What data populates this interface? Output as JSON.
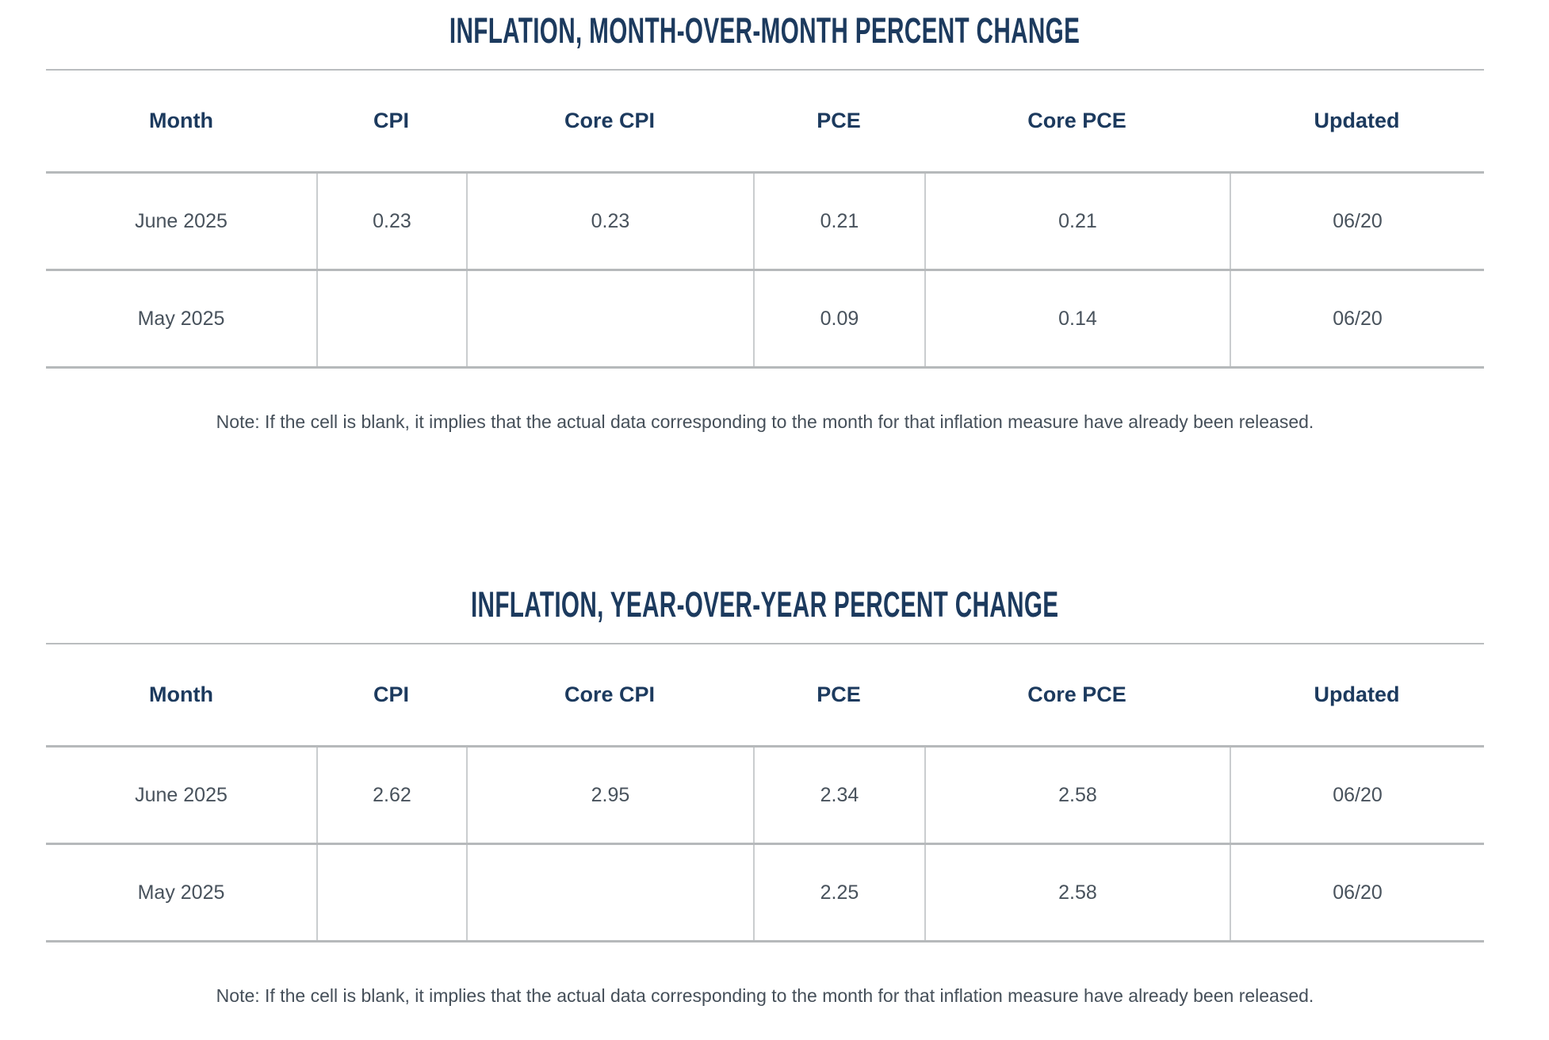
{
  "colors": {
    "title_navy": "#1c3a5e",
    "cell_text": "#48525c",
    "row_rule": "#b6b9bb",
    "column_rule": "#cacdcf",
    "background": "#ffffff"
  },
  "chart_data": [
    {
      "type": "table",
      "title": "INFLATION, MONTH-OVER-MONTH PERCENT CHANGE",
      "columns": [
        "Month",
        "CPI",
        "Core CPI",
        "PCE",
        "Core PCE",
        "Updated"
      ],
      "rows": [
        [
          "June 2025",
          "0.23",
          "0.23",
          "0.21",
          "0.21",
          "06/20"
        ],
        [
          "May 2025",
          "",
          "",
          "0.09",
          "0.14",
          "06/20"
        ]
      ],
      "note": "Note: If the cell is blank, it implies that the actual data corresponding to the month for that inflation measure have already been released."
    },
    {
      "type": "table",
      "title": "INFLATION, YEAR-OVER-YEAR PERCENT CHANGE",
      "columns": [
        "Month",
        "CPI",
        "Core CPI",
        "PCE",
        "Core PCE",
        "Updated"
      ],
      "rows": [
        [
          "June 2025",
          "2.62",
          "2.95",
          "2.34",
          "2.58",
          "06/20"
        ],
        [
          "May 2025",
          "",
          "",
          "2.25",
          "2.58",
          "06/20"
        ]
      ],
      "note": "Note: If the cell is blank, it implies that the actual data corresponding to the month for that inflation measure have already been released."
    }
  ]
}
